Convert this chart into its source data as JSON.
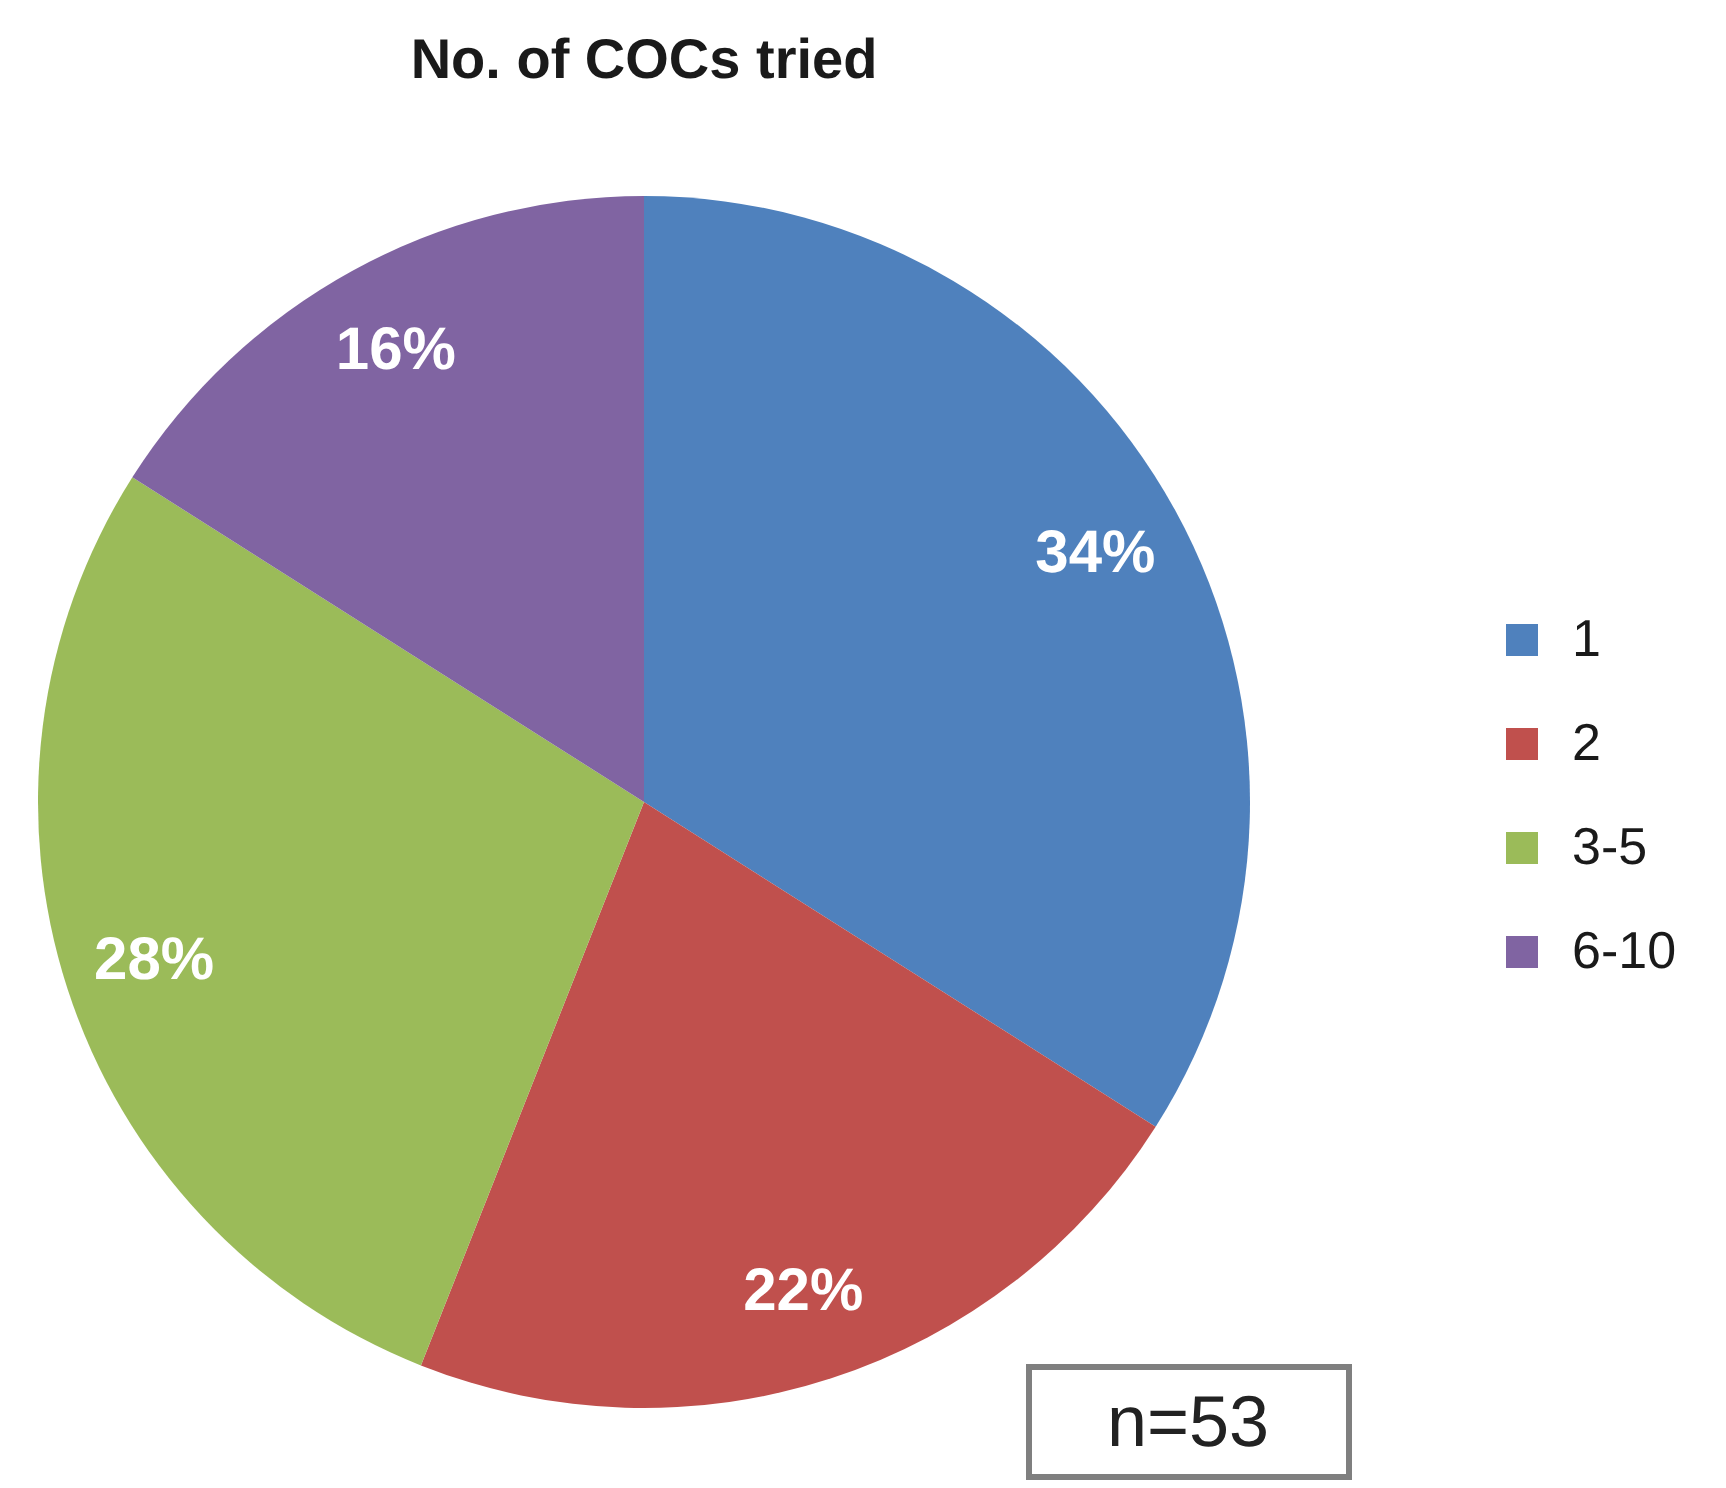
{
  "chart_data": {
    "type": "pie",
    "title": "No. of COCs tried",
    "categories": [
      "1",
      "2",
      "3-5",
      "6-10"
    ],
    "values": [
      34,
      22,
      28,
      16
    ],
    "value_labels": [
      "34%",
      "22%",
      "28%",
      "16%"
    ],
    "colors": [
      "#4f81bd",
      "#c0504d",
      "#9bbb59",
      "#8064a2"
    ],
    "legend": "right",
    "annotations": [
      "n=53"
    ]
  }
}
